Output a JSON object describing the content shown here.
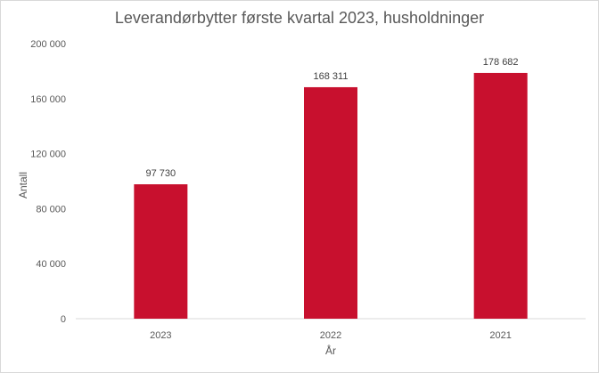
{
  "chart_data": {
    "type": "bar",
    "title": "Leverandørbytter  første kvartal 2023, husholdninger",
    "xlabel": "År",
    "ylabel": "Antall",
    "categories": [
      "2023",
      "2022",
      "2021"
    ],
    "values": [
      97730,
      168311,
      178682
    ],
    "data_labels": [
      "97 730",
      "168 311",
      "178 682"
    ],
    "ylim": [
      0,
      200000
    ],
    "yticks": [
      0,
      40000,
      80000,
      120000,
      160000,
      200000
    ],
    "ytick_labels": [
      "0",
      "40 000",
      "80 000",
      "120 000",
      "160 000",
      "200 000"
    ],
    "grid": false,
    "legend": "none",
    "bar_color": "#C8102E"
  }
}
